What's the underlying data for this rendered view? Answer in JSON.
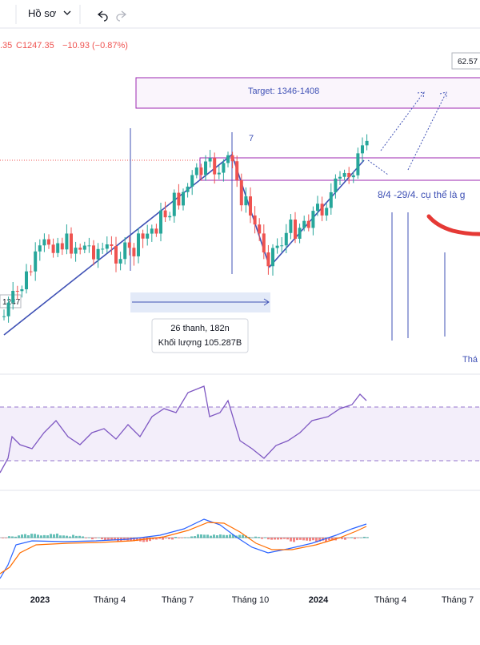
{
  "toolbar": {
    "profile": "Hồ sơ"
  },
  "legend": {
    "open": ".35",
    "close": "C1247.35",
    "change": "−10.93 (−0.87%)"
  },
  "price_label": "62.57",
  "annotations": {
    "target": "Target: 1346-1408",
    "wave": "7",
    "note": "8/4 -29/4. cụ thể là g",
    "range_bars": "26 thanh, 182n",
    "range_volume": "Khối lượng 105.287B",
    "low_label": "1247",
    "month_label": "Thá"
  },
  "time_axis": [
    "2023",
    "Tháng 4",
    "Tháng 7",
    "Tháng 10",
    "2024",
    "Tháng 4",
    "Tháng 7"
  ]
}
